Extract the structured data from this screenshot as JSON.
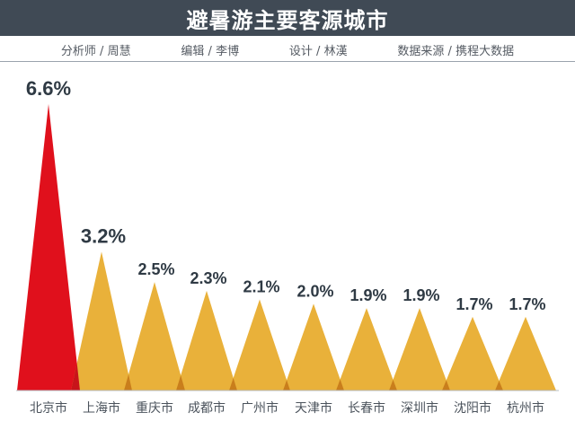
{
  "title": "避暑游主要客源城市",
  "credits": [
    "分析师 / 周慧",
    "编辑 / 李博",
    "设计 / 林漢",
    "数据来源 / 携程大数据"
  ],
  "colors": {
    "title_bar": "#404a55",
    "highlight": "#e0101c",
    "bar": "#e9b13a",
    "overlap": "#c97e1c"
  },
  "chart_data": {
    "type": "bar",
    "categories": [
      "北京市",
      "上海市",
      "重庆市",
      "成都市",
      "广州市",
      "天津市",
      "长春市",
      "深圳市",
      "沈阳市",
      "杭州市"
    ],
    "values": [
      6.6,
      3.2,
      2.5,
      2.3,
      2.1,
      2.0,
      1.9,
      1.9,
      1.7,
      1.7
    ],
    "value_labels": [
      "6.6%",
      "3.2%",
      "2.5%",
      "2.3%",
      "2.1%",
      "2.0%",
      "1.9%",
      "1.9%",
      "1.7%",
      "1.7%"
    ],
    "unit": "%",
    "highlight_index": 0,
    "ylim": [
      0,
      6.6
    ],
    "grid": false,
    "legend": "none"
  }
}
